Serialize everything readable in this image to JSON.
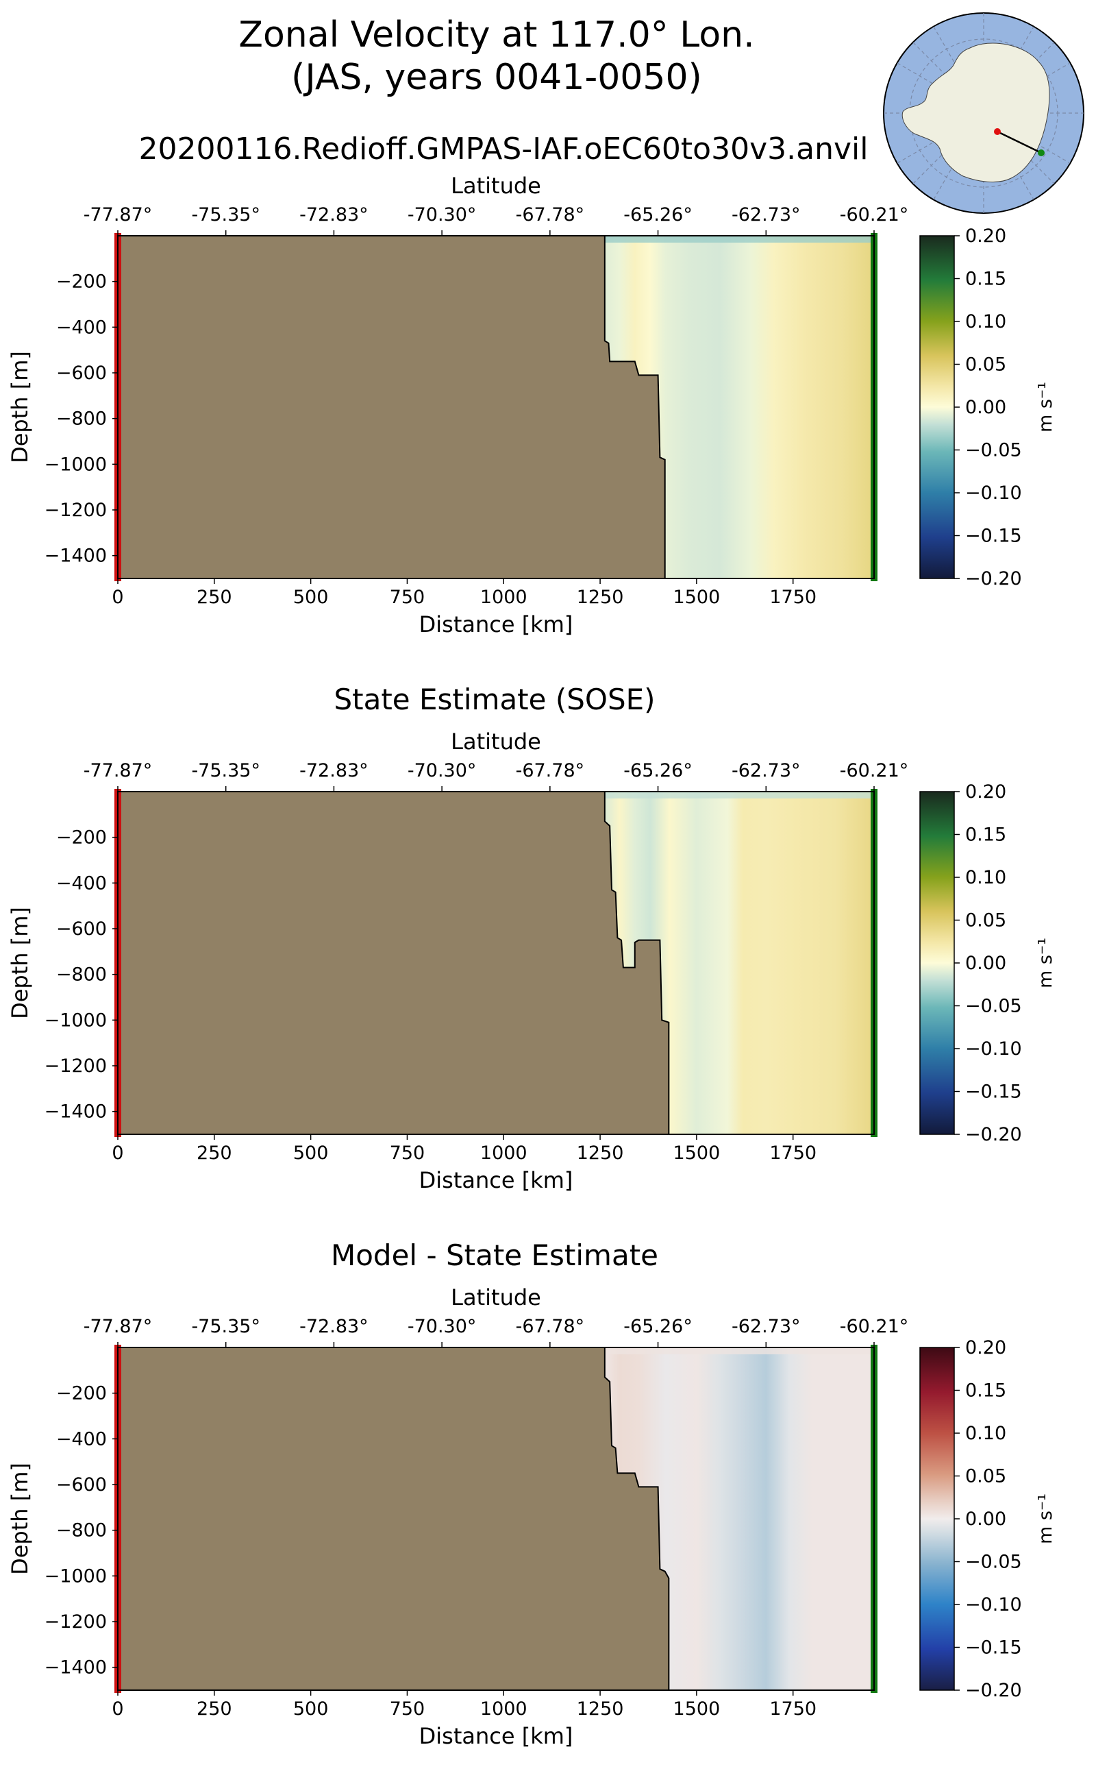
{
  "title_line1": "Zonal Velocity at 117.0° Lon.",
  "title_line2": "(JAS, years 0041-0050)",
  "subtitle": "20200116.Redioff.GMPAS-IAF.oEC60to30v3.anvil",
  "inset_map": {
    "description_icon": "antarctica-polar-map-icon",
    "colors": {
      "ocean": "#97b5e0",
      "land": "#efefe0",
      "start_marker": "#e01010",
      "end_marker": "#118811"
    }
  },
  "colors": {
    "land": "#918165",
    "start_line": "#cc1111",
    "end_line": "#117711"
  },
  "chart_data": [
    {
      "type": "heatmap",
      "title": "",
      "xlabel": "Distance [km]",
      "ylabel": "Depth [m]",
      "top_xlabel": "Latitude",
      "xlim": [
        0,
        1960
      ],
      "ylim": [
        -1500,
        0
      ],
      "x_ticks": [
        0,
        250,
        500,
        750,
        1000,
        1250,
        1500,
        1750
      ],
      "x_tick_labels": [
        "0",
        "250",
        "500",
        "750",
        "1000",
        "1250",
        "1500",
        "1750"
      ],
      "y_ticks": [
        -200,
        -400,
        -600,
        -800,
        -1000,
        -1200,
        -1400
      ],
      "y_tick_labels": [
        "−200",
        "−400",
        "−600",
        "−800",
        "−1000",
        "−1200",
        "−1400"
      ],
      "lat_ticks_km": [
        0,
        280,
        560,
        840,
        1120,
        1400,
        1680,
        1960
      ],
      "lat_tick_labels": [
        "-77.87°",
        "-75.35°",
        "-72.83°",
        "-70.30°",
        "-67.78°",
        "-65.26°",
        "-62.73°",
        "-60.21°"
      ],
      "colormap": "delta",
      "colorbar_ticks": [
        "0.20",
        "0.15",
        "0.10",
        "0.05",
        "0.00",
        "−0.05",
        "−0.10",
        "−0.15",
        "−0.20"
      ],
      "colorbar_label": "m s⁻¹",
      "clim": [
        -0.2,
        0.2
      ],
      "bathymetry": [
        [
          0,
          0
        ],
        [
          1262,
          0
        ],
        [
          1262,
          -460
        ],
        [
          1272,
          -470
        ],
        [
          1275,
          -550
        ],
        [
          1340,
          -550
        ],
        [
          1350,
          -610
        ],
        [
          1400,
          -610
        ],
        [
          1405,
          -970
        ],
        [
          1418,
          -980
        ],
        [
          1418,
          -1500
        ],
        [
          0,
          -1500
        ]
      ],
      "field_columns": [
        {
          "x": 1262,
          "v": -0.01
        },
        {
          "x": 1300,
          "v": -0.006
        },
        {
          "x": 1340,
          "v": 0.012
        },
        {
          "x": 1380,
          "v": 0.004
        },
        {
          "x": 1420,
          "v": -0.008
        },
        {
          "x": 1480,
          "v": -0.012
        },
        {
          "x": 1560,
          "v": -0.014
        },
        {
          "x": 1640,
          "v": -0.006
        },
        {
          "x": 1700,
          "v": 0.012
        },
        {
          "x": 1780,
          "v": 0.022
        },
        {
          "x": 1880,
          "v": 0.03
        },
        {
          "x": 1960,
          "v": 0.042
        }
      ],
      "surface_band_value": -0.035
    },
    {
      "type": "heatmap",
      "title": "State Estimate (SOSE)",
      "xlabel": "Distance [km]",
      "ylabel": "Depth [m]",
      "top_xlabel": "Latitude",
      "xlim": [
        0,
        1960
      ],
      "ylim": [
        -1500,
        0
      ],
      "x_ticks": [
        0,
        250,
        500,
        750,
        1000,
        1250,
        1500,
        1750
      ],
      "x_tick_labels": [
        "0",
        "250",
        "500",
        "750",
        "1000",
        "1250",
        "1500",
        "1750"
      ],
      "y_ticks": [
        -200,
        -400,
        -600,
        -800,
        -1000,
        -1200,
        -1400
      ],
      "y_tick_labels": [
        "−200",
        "−400",
        "−600",
        "−800",
        "−1000",
        "−1200",
        "−1400"
      ],
      "lat_ticks_km": [
        0,
        280,
        560,
        840,
        1120,
        1400,
        1680,
        1960
      ],
      "lat_tick_labels": [
        "-77.87°",
        "-75.35°",
        "-72.83°",
        "-70.30°",
        "-67.78°",
        "-65.26°",
        "-62.73°",
        "-60.21°"
      ],
      "colormap": "delta",
      "colorbar_ticks": [
        "0.20",
        "0.15",
        "0.10",
        "0.05",
        "0.00",
        "−0.05",
        "−0.10",
        "−0.15",
        "−0.20"
      ],
      "colorbar_label": "m s⁻¹",
      "clim": [
        -0.2,
        0.2
      ],
      "bathymetry": [
        [
          0,
          0
        ],
        [
          1262,
          0
        ],
        [
          1262,
          -130
        ],
        [
          1275,
          -150
        ],
        [
          1280,
          -430
        ],
        [
          1290,
          -440
        ],
        [
          1295,
          -640
        ],
        [
          1305,
          -650
        ],
        [
          1310,
          -770
        ],
        [
          1340,
          -770
        ],
        [
          1340,
          -660
        ],
        [
          1350,
          -650
        ],
        [
          1405,
          -650
        ],
        [
          1410,
          -1000
        ],
        [
          1428,
          -1010
        ],
        [
          1428,
          -1500
        ],
        [
          0,
          -1500
        ]
      ],
      "field_columns": [
        {
          "x": 1262,
          "v": -0.012
        },
        {
          "x": 1300,
          "v": 0.008
        },
        {
          "x": 1340,
          "v": -0.01
        },
        {
          "x": 1380,
          "v": -0.016
        },
        {
          "x": 1430,
          "v": 0.006
        },
        {
          "x": 1500,
          "v": -0.01
        },
        {
          "x": 1580,
          "v": -0.004
        },
        {
          "x": 1620,
          "v": 0.02
        },
        {
          "x": 1680,
          "v": 0.018
        },
        {
          "x": 1760,
          "v": 0.022
        },
        {
          "x": 1860,
          "v": 0.026
        },
        {
          "x": 1960,
          "v": 0.04
        }
      ],
      "surface_band_value": -0.02
    },
    {
      "type": "heatmap",
      "title": "Model - State Estimate",
      "xlabel": "Distance [km]",
      "ylabel": "Depth [m]",
      "top_xlabel": "Latitude",
      "xlim": [
        0,
        1960
      ],
      "ylim": [
        -1500,
        0
      ],
      "x_ticks": [
        0,
        250,
        500,
        750,
        1000,
        1250,
        1500,
        1750
      ],
      "x_tick_labels": [
        "0",
        "250",
        "500",
        "750",
        "1000",
        "1250",
        "1500",
        "1750"
      ],
      "y_ticks": [
        -200,
        -400,
        -600,
        -800,
        -1000,
        -1200,
        -1400
      ],
      "y_tick_labels": [
        "−200",
        "−400",
        "−600",
        "−800",
        "−1000",
        "−1200",
        "−1400"
      ],
      "lat_ticks_km": [
        0,
        280,
        560,
        840,
        1120,
        1400,
        1680,
        1960
      ],
      "lat_tick_labels": [
        "-77.87°",
        "-75.35°",
        "-72.83°",
        "-70.30°",
        "-67.78°",
        "-65.26°",
        "-62.73°",
        "-60.21°"
      ],
      "colormap": "balance",
      "colorbar_ticks": [
        "0.20",
        "0.15",
        "0.10",
        "0.05",
        "0.00",
        "−0.05",
        "−0.10",
        "−0.15",
        "−0.20"
      ],
      "colorbar_label": "m s⁻¹",
      "clim": [
        -0.2,
        0.2
      ],
      "bathymetry": [
        [
          0,
          0
        ],
        [
          1262,
          0
        ],
        [
          1262,
          -130
        ],
        [
          1275,
          -150
        ],
        [
          1280,
          -430
        ],
        [
          1290,
          -440
        ],
        [
          1295,
          -550
        ],
        [
          1340,
          -550
        ],
        [
          1350,
          -610
        ],
        [
          1400,
          -610
        ],
        [
          1405,
          -970
        ],
        [
          1418,
          -980
        ],
        [
          1428,
          -1010
        ],
        [
          1428,
          -1500
        ],
        [
          0,
          -1500
        ]
      ],
      "field_columns": [
        {
          "x": 1262,
          "v": 0.004
        },
        {
          "x": 1300,
          "v": 0.012
        },
        {
          "x": 1350,
          "v": 0.01
        },
        {
          "x": 1420,
          "v": -0.004
        },
        {
          "x": 1500,
          "v": 0.004
        },
        {
          "x": 1560,
          "v": -0.01
        },
        {
          "x": 1620,
          "v": -0.02
        },
        {
          "x": 1680,
          "v": -0.03
        },
        {
          "x": 1740,
          "v": -0.008
        },
        {
          "x": 1800,
          "v": 0.004
        },
        {
          "x": 1880,
          "v": 0.004
        },
        {
          "x": 1960,
          "v": 0.004
        }
      ],
      "surface_band_value": 0.006
    }
  ]
}
